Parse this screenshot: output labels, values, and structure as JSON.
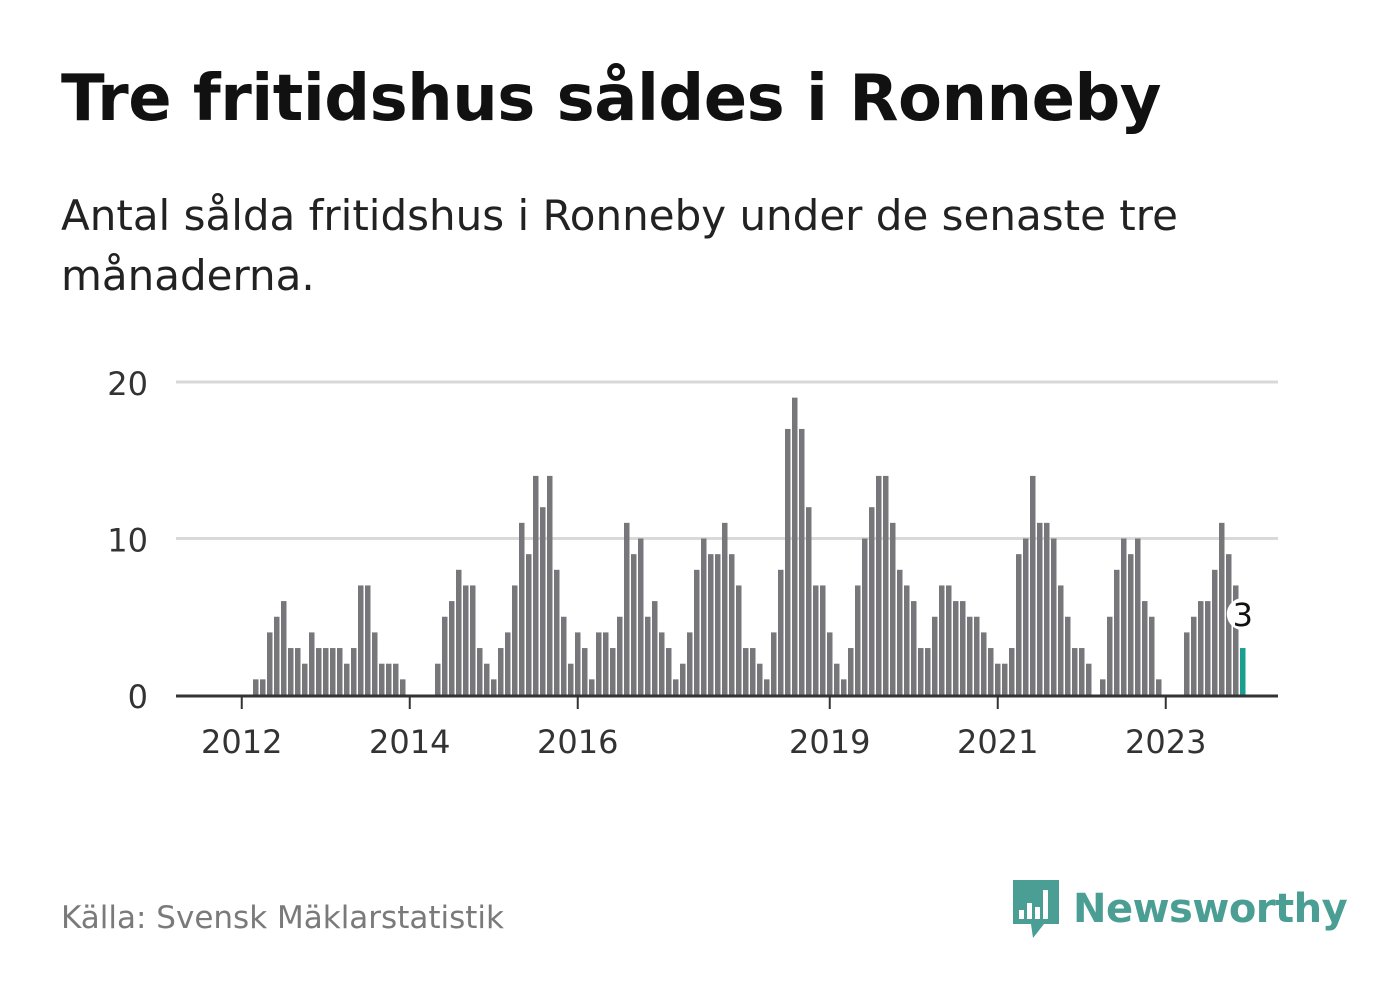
{
  "title": "Tre fritidshus såldes i Ronneby",
  "subtitle": "Antal sålda fritidshus i Ronneby under de senaste tre månaderna.",
  "source": "Källa: Svensk Mäklarstatistik",
  "brand": {
    "name": "Newsworthy",
    "color": "#4a9e93"
  },
  "colors": {
    "bar": "#77767b",
    "highlight": "#1a9e8f",
    "grid": "#d9d9d9",
    "axis": "#333333"
  },
  "chart_data": {
    "type": "bar",
    "ylim": [
      0,
      20
    ],
    "yticks": [
      0,
      10,
      20
    ],
    "start_year": 2011,
    "start_month": 5,
    "xlim_months": 160,
    "x_tick_labels": [
      {
        "label": "2012",
        "month_index": 8
      },
      {
        "label": "2014",
        "month_index": 32
      },
      {
        "label": "2016",
        "month_index": 56
      },
      {
        "label": "2019",
        "month_index": 92
      },
      {
        "label": "2021",
        "month_index": 116
      },
      {
        "label": "2023",
        "month_index": 140
      }
    ],
    "values": [
      0,
      0,
      0,
      0,
      0,
      0,
      0,
      0,
      0,
      0,
      1,
      1,
      4,
      5,
      6,
      3,
      3,
      2,
      4,
      3,
      3,
      3,
      3,
      2,
      3,
      7,
      7,
      4,
      2,
      2,
      2,
      1,
      0,
      0,
      0,
      0,
      2,
      5,
      6,
      8,
      7,
      7,
      3,
      2,
      1,
      3,
      4,
      7,
      11,
      9,
      14,
      12,
      14,
      8,
      5,
      2,
      4,
      3,
      1,
      4,
      4,
      3,
      5,
      11,
      9,
      10,
      5,
      6,
      4,
      3,
      1,
      2,
      4,
      8,
      10,
      9,
      9,
      11,
      9,
      7,
      3,
      3,
      2,
      1,
      4,
      8,
      17,
      19,
      17,
      12,
      7,
      7,
      4,
      2,
      1,
      3,
      7,
      10,
      12,
      14,
      14,
      11,
      8,
      7,
      6,
      3,
      3,
      5,
      7,
      7,
      6,
      6,
      5,
      5,
      4,
      3,
      2,
      2,
      3,
      9,
      10,
      14,
      11,
      11,
      10,
      7,
      5,
      3,
      3,
      2,
      0,
      1,
      5,
      8,
      10,
      9,
      10,
      6,
      5,
      1,
      0,
      0,
      0,
      4,
      5,
      6,
      6,
      8,
      11,
      9,
      7,
      3
    ],
    "highlight_last": true,
    "last_label": "3"
  }
}
